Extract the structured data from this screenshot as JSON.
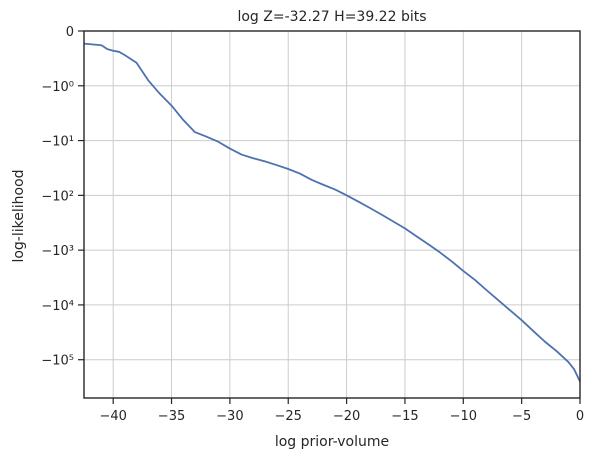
{
  "chart_data": {
    "type": "line",
    "title": "log Z=-32.27 H=39.22 bits",
    "xlabel": "log prior-volume",
    "ylabel": "log-likelihood",
    "y_scale": "symlog",
    "grid": true,
    "colors": {
      "line": "#4c72b0",
      "grid": "#cccccc",
      "axes": "#262626"
    },
    "xlim": [
      -42.5,
      0
    ],
    "ylim": [
      -500000,
      0
    ],
    "x_ticks": [
      {
        "value": -40,
        "label": "−40"
      },
      {
        "value": -35,
        "label": "−35"
      },
      {
        "value": -30,
        "label": "−30"
      },
      {
        "value": -25,
        "label": "−25"
      },
      {
        "value": -20,
        "label": "−20"
      },
      {
        "value": -15,
        "label": "−15"
      },
      {
        "value": -10,
        "label": "−10"
      },
      {
        "value": -5,
        "label": "−5"
      },
      {
        "value": 0,
        "label": "0"
      }
    ],
    "y_ticks": [
      {
        "value": 0,
        "label": "0"
      },
      {
        "value": -1,
        "label": "−10⁰"
      },
      {
        "value": -10,
        "label": "−10¹"
      },
      {
        "value": -100,
        "label": "−10²"
      },
      {
        "value": -1000,
        "label": "−10³"
      },
      {
        "value": -10000,
        "label": "−10⁴"
      },
      {
        "value": -100000,
        "label": "−10⁵"
      }
    ],
    "series": [
      {
        "x": [
          -42.5,
          -41,
          -40.5,
          -40,
          -39.5,
          -39,
          -38,
          -37,
          -36,
          -35,
          -34,
          -33,
          -32,
          -31,
          -30,
          -29,
          -28,
          -27,
          -26,
          -25,
          -24,
          -23,
          -22,
          -21,
          -20,
          -19,
          -18,
          -17,
          -16,
          -15,
          -14,
          -13,
          -12,
          -11,
          -10,
          -9,
          -8,
          -7,
          -6,
          -5,
          -4,
          -3,
          -2,
          -1,
          -0.5,
          0
        ],
        "y": [
          -0.23,
          -0.26,
          -0.33,
          -0.36,
          -0.38,
          -0.44,
          -0.58,
          -0.9,
          -1.4,
          -2.3,
          -4.2,
          -7.0,
          -8.5,
          -10.5,
          -14,
          -18,
          -21,
          -24,
          -28,
          -33,
          -40,
          -52,
          -64,
          -78,
          -100,
          -130,
          -170,
          -225,
          -300,
          -400,
          -560,
          -780,
          -1100,
          -1600,
          -2400,
          -3500,
          -5400,
          -8200,
          -12500,
          -19000,
          -30000,
          -47000,
          -70000,
          -110000,
          -150000,
          -250000
        ]
      }
    ]
  }
}
